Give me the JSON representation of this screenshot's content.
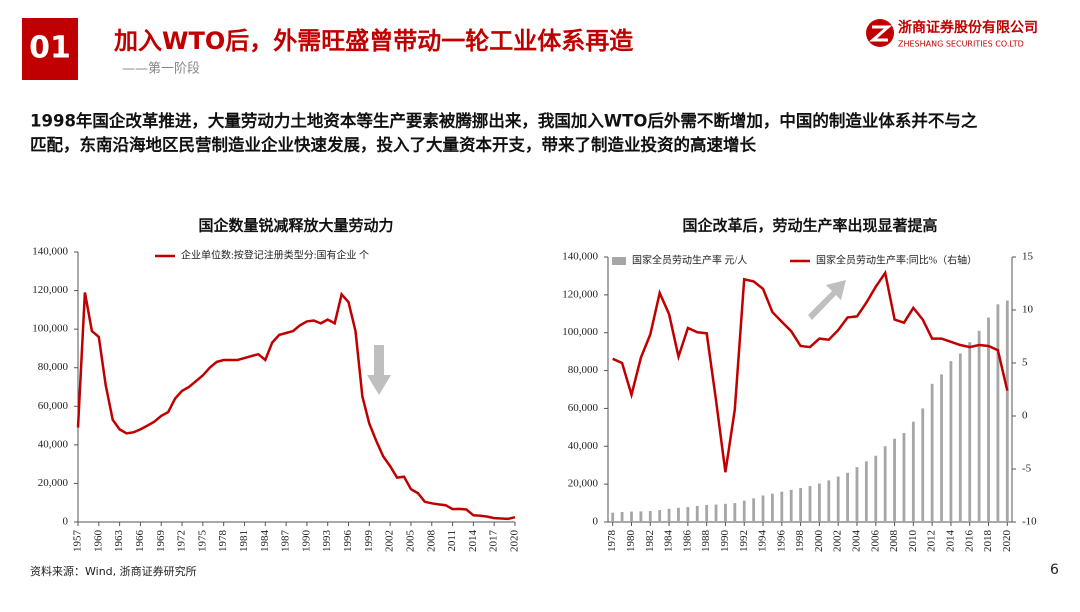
{
  "header": {
    "number": "01",
    "title": "加入WTO后，外需旺盛曾带动一轮工业体系再造",
    "subtitle": "——第一阶段",
    "logo": {
      "name": "浙商证券股份有限公司",
      "en": "ZHESHANG SECURITIES CO.LTD"
    }
  },
  "intro": [
    "1998年国企改革推进，大量劳动力土地资本等生产要素被腾挪出来，我国加入WTO后外需不断增加，中国的制造业体系并不与之",
    "匹配，东南沿海地区民营制造业企业快速发展，投入了大量资本开支，带来了制造业投资的高速增长"
  ],
  "footer": {
    "source": "资料来源：Wind, 浙商证券研究所",
    "page": "6"
  },
  "chart_data": [
    {
      "type": "line",
      "title": "国企数量锐减释放大量劳动力",
      "categories": [
        "1957",
        null,
        null,
        "1960",
        null,
        null,
        "1963",
        null,
        null,
        "1966",
        null,
        null,
        "1969",
        null,
        null,
        "1972",
        null,
        null,
        "1975",
        null,
        null,
        "1978",
        null,
        null,
        "1981",
        null,
        null,
        "1984",
        null,
        null,
        "1987",
        null,
        null,
        "1990",
        null,
        null,
        "1993",
        null,
        null,
        "1996",
        null,
        null,
        "1999",
        null,
        null,
        "2002",
        null,
        null,
        "2005",
        null,
        null,
        "2008",
        null,
        null,
        "2011",
        null,
        null,
        "2014",
        null,
        null,
        "2017",
        null,
        null,
        "2020"
      ],
      "series": [
        {
          "name": "企业单位数:按登记注册类型分:国有企业 个",
          "color": "#c00000",
          "values": [
            49000,
            119000,
            99000,
            96000,
            71000,
            53000,
            48000,
            46000,
            46500,
            48000,
            50000,
            52000,
            55000,
            57000,
            64000,
            68000,
            70000,
            73000,
            76000,
            80000,
            83000,
            84000,
            84000,
            84000,
            85000,
            86000,
            87000,
            84000,
            93000,
            97000,
            98000,
            99000,
            102000,
            104000,
            104500,
            103000,
            105000,
            103000,
            118000,
            114000,
            99000,
            65000,
            51000,
            42000,
            34000,
            29000,
            23000,
            23500,
            17000,
            15000,
            10500,
            9700,
            9100,
            8700,
            6700,
            6800,
            6500,
            3500,
            3200,
            2800,
            2000,
            1800,
            1600,
            2500
          ]
        }
      ],
      "ylim": [
        0,
        140000
      ],
      "yticks": [
        0,
        {
          "value": 20000,
          "label": "20,000"
        },
        {
          "value": 40000,
          "label": "40,000"
        },
        {
          "value": 60000,
          "label": "60,000"
        },
        {
          "value": 80000,
          "label": "80,000"
        },
        {
          "value": 100000,
          "label": "100,000"
        },
        {
          "value": 120000,
          "label": "120,000"
        },
        {
          "value": 140000,
          "label": "140,000"
        }
      ],
      "grid": false
    },
    {
      "type": "combo",
      "title": "国企改革后，劳动生产率出现显著提高",
      "categories": [
        "1978",
        null,
        "1980",
        null,
        "1982",
        null,
        "1984",
        null,
        "1986",
        null,
        "1988",
        null,
        "1990",
        null,
        "1992",
        null,
        "1994",
        null,
        "1996",
        null,
        "1998",
        null,
        "2000",
        null,
        "2002",
        null,
        "2004",
        null,
        "2006",
        null,
        "2008",
        null,
        "2010",
        null,
        "2012",
        null,
        "2014",
        null,
        "2016",
        null,
        "2018",
        null,
        "2020"
      ],
      "series": [
        {
          "name": "国家全员劳动生产率 元/人",
          "kind": "bar",
          "color": "#a6a6a6",
          "values": [
            4900,
            5300,
            5500,
            5600,
            5800,
            6300,
            7000,
            7500,
            7900,
            8500,
            9000,
            9200,
            9600,
            10000,
            11300,
            12500,
            14000,
            15000,
            16000,
            17000,
            18000,
            19000,
            20300,
            22000,
            24000,
            26000,
            29000,
            32000,
            35000,
            40000,
            44000,
            47000,
            53000,
            60000,
            73000,
            78000,
            85000,
            89000,
            95000,
            101000,
            108000,
            115000,
            117000
          ]
        },
        {
          "name": "国家全员劳动生产率:同比%（右轴）",
          "kind": "line",
          "axis": "y2",
          "color": "#c00000",
          "values": [
            5.4,
            5.0,
            2.0,
            5.5,
            7.7,
            11.6,
            9.6,
            5.6,
            8.3,
            7.9,
            7.8,
            1.5,
            -5.3,
            0.6,
            12.9,
            12.7,
            12.0,
            9.8,
            8.9,
            8.0,
            6.6,
            6.5,
            7.3,
            7.2,
            8.1,
            9.3,
            9.4,
            10.7,
            12.2,
            13.5,
            9.1,
            8.8,
            10.2,
            9.1,
            7.3,
            7.3,
            7.0,
            6.7,
            6.5,
            6.7,
            6.6,
            6.2,
            2.4
          ]
        }
      ],
      "ylim": [
        0,
        140000
      ],
      "yticks": [
        0,
        {
          "value": 20000,
          "label": "20,000"
        },
        {
          "value": 40000,
          "label": "40,000"
        },
        {
          "value": 60000,
          "label": "60,000"
        },
        {
          "value": 80000,
          "label": "80,000"
        },
        {
          "value": 100000,
          "label": "100,000"
        },
        {
          "value": 120000,
          "label": "120,000"
        },
        {
          "value": 140000,
          "label": "140,000"
        }
      ],
      "y2lim": [
        -10,
        15
      ],
      "y2ticks": [
        -10,
        -5,
        0,
        5,
        10,
        15
      ],
      "grid": false
    }
  ]
}
